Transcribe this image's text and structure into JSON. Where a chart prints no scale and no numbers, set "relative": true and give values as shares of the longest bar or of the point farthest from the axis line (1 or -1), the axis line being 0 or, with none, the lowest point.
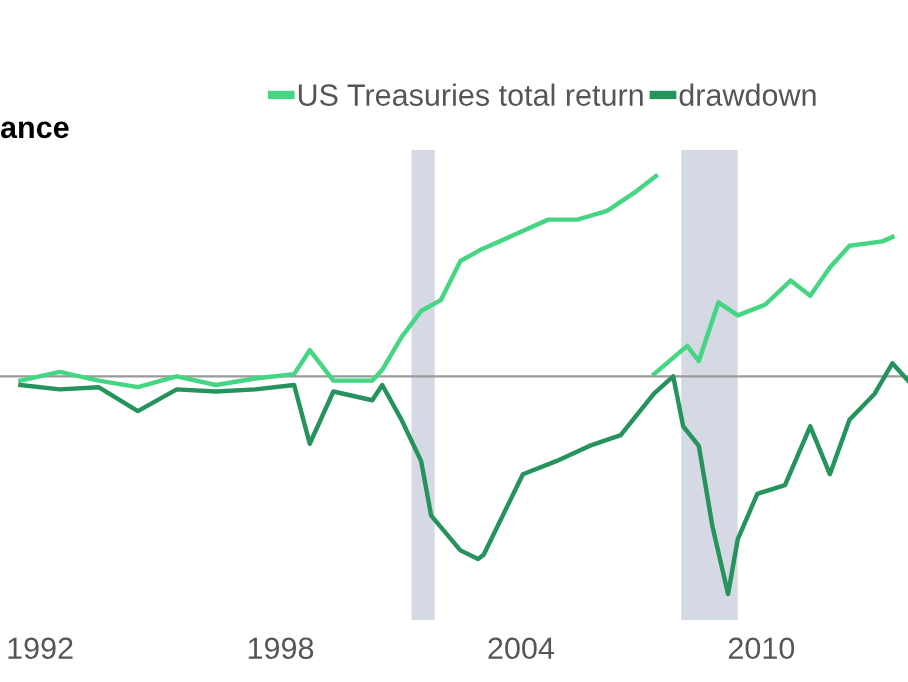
{
  "chart_data": {
    "type": "line",
    "title": "ance",
    "relative": true,
    "legend": "top",
    "grid": false,
    "marker": "none",
    "line_style": "solid",
    "xlim": [
      1991.0,
      2013.66
    ],
    "xticks": [
      1992,
      1998,
      2004,
      2010
    ],
    "series": [
      {
        "name": "US Treasuries total return",
        "color": "#45d683",
        "x": [
          1991.51,
          1992.49,
          1993.46,
          1994.44,
          1995.41,
          1996.39,
          1997.37,
          1998.34,
          1998.73,
          1999.32,
          2000.29,
          2000.54,
          2001.02,
          2001.51,
          2002.0,
          2002.49,
          2002.98,
          2003.71,
          2004.68,
          2005.41,
          2006.15,
          2006.88,
          2007.37
        ],
        "values": [
          -0.02,
          0.02,
          -0.02,
          -0.05,
          0,
          -0.04,
          -0.01,
          0.01,
          0.12,
          -0.02,
          -0.02,
          0.03,
          0.18,
          0.3,
          0.35,
          0.53,
          0.58,
          0.64,
          0.72,
          0.72,
          0.76,
          0.85,
          0.92
        ]
      },
      {
        "color": "#45d683",
        "x": [
          2007.32,
          2008.15,
          2008.44,
          2008.93,
          2009.41,
          2010.1,
          2010.73,
          2011.22,
          2011.71,
          2012.2,
          2013.02,
          2013.27
        ],
        "values": [
          0.01,
          0.14,
          0.07,
          0.34,
          0.28,
          0.33,
          0.44,
          0.37,
          0.5,
          0.6,
          0.62,
          0.64
        ]
      },
      {
        "name": "drawdown",
        "color": "#25935c",
        "x": [
          1991.51,
          1992.49,
          1993.46,
          1994.44,
          1995.41,
          1996.39,
          1997.37,
          1998.34,
          1998.73,
          1999.32,
          2000.29,
          2000.54,
          2001.02,
          2001.51,
          2001.76,
          2002.49,
          2002.93,
          2003.07,
          2004.05,
          2004.88,
          2005.71,
          2006.49,
          2007.32,
          2007.8,
          2008.05,
          2008.44,
          2008.78,
          2009.17,
          2009.41,
          2009.9,
          2010.59,
          2011.22,
          2011.71,
          2012.2,
          2012.83,
          2013.27,
          2013.66
        ],
        "values": [
          -0.04,
          -0.06,
          -0.05,
          -0.16,
          -0.06,
          -0.07,
          -0.06,
          -0.04,
          -0.31,
          -0.07,
          -0.11,
          -0.04,
          -0.2,
          -0.39,
          -0.64,
          -0.8,
          -0.84,
          -0.82,
          -0.45,
          -0.39,
          -0.32,
          -0.27,
          -0.08,
          0,
          -0.23,
          -0.32,
          -0.69,
          -1.0,
          -0.75,
          -0.54,
          -0.5,
          -0.23,
          -0.45,
          -0.2,
          -0.08,
          0.06,
          -0.02
        ]
      }
    ],
    "ref_lines": [
      {
        "axis": "y",
        "value": 0,
        "color": "#9a9a9a"
      }
    ],
    "bands": [
      {
        "axis": "x",
        "from": 2001.27,
        "to": 2001.85,
        "color": "#d5d9e3"
      },
      {
        "axis": "x",
        "from": 2008.0,
        "to": 2009.41,
        "color": "#d5d9e3"
      }
    ]
  }
}
